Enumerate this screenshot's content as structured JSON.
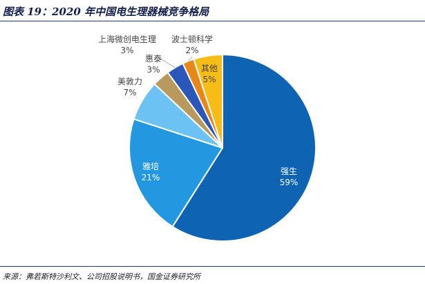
{
  "title": "图表 19：2020 年中国电生理器械竞争格局",
  "source": "来源：弗若斯特沙利文、公司招股说明书，国金证券研究所",
  "chart_data": {
    "type": "pie",
    "title": "图表 19：2020 年中国电生理器械竞争格局",
    "slices": [
      {
        "label": "强生",
        "value": 59,
        "value_label": "59%",
        "color": "#0f63b3"
      },
      {
        "label": "雅培",
        "value": 21,
        "value_label": "21%",
        "color": "#2398e0"
      },
      {
        "label": "美敦力",
        "value": 7,
        "value_label": "7%",
        "color": "#6cc3f3"
      },
      {
        "label": "惠泰",
        "value": 3,
        "value_label": "3%",
        "color": "#b89a5e"
      },
      {
        "label": "上海微创电生理",
        "value": 3,
        "value_label": "3%",
        "color": "#2a57b8"
      },
      {
        "label": "波士顿科学",
        "value": 2,
        "value_label": "2%",
        "color": "#e8861a"
      },
      {
        "label": "其他",
        "value": 5,
        "value_label": "5%",
        "color": "#f7bd16"
      }
    ]
  }
}
